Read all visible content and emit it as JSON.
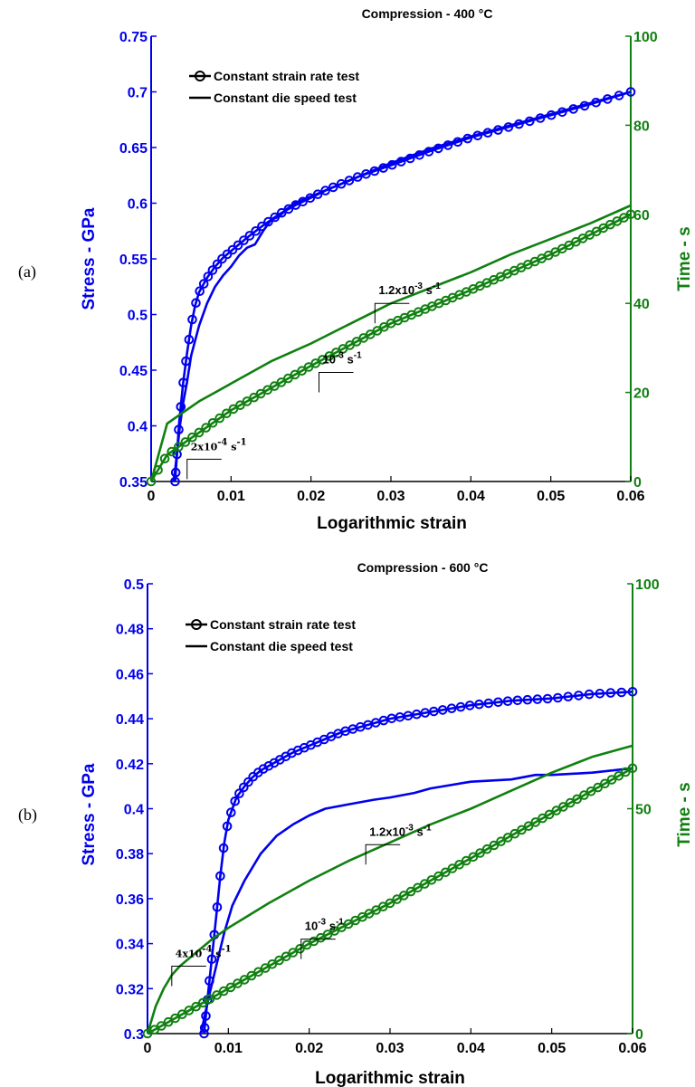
{
  "colors": {
    "stress": "#0000ee",
    "time": "#108010",
    "axis": "#000000"
  },
  "chart_data": [
    {
      "type": "line",
      "panel_label": "(a)",
      "title": "Compression - 400 °C",
      "xlabel": "Logarithmic strain",
      "ylabel_left": "Stress - GPa",
      "ylabel_right": "Time - s",
      "xlim": [
        0,
        0.06
      ],
      "ylim_left": [
        0.35,
        0.75
      ],
      "ylim_right": [
        0,
        100
      ],
      "x_ticks": [
        "0",
        "0.01",
        "0.02",
        "0.03",
        "0.04",
        "0.05",
        "0.06"
      ],
      "y_left_ticks": [
        "0.35",
        "0.4",
        "0.45",
        "0.5",
        "0.55",
        "0.6",
        "0.65",
        "0.7",
        "0.75"
      ],
      "y_right_ticks": [
        "0",
        "20",
        "40",
        "60",
        "80",
        "100"
      ],
      "legend": [
        "Constant strain rate test",
        "Constant die speed test"
      ],
      "legend_position": "top-left",
      "series": [
        {
          "name": "Constant strain rate test",
          "axis": "left",
          "x": [
            0.003,
            0.0035,
            0.004,
            0.0045,
            0.005,
            0.0055,
            0.006,
            0.007,
            0.008,
            0.009,
            0.01,
            0.012,
            0.014,
            0.016,
            0.018,
            0.02,
            0.022,
            0.024,
            0.026,
            0.028,
            0.03,
            0.035,
            0.04,
            0.045,
            0.05,
            0.055,
            0.06
          ],
          "y": [
            0.35,
            0.402,
            0.438,
            0.466,
            0.49,
            0.508,
            0.52,
            0.533,
            0.543,
            0.551,
            0.557,
            0.569,
            0.58,
            0.59,
            0.598,
            0.605,
            0.612,
            0.618,
            0.624,
            0.629,
            0.634,
            0.647,
            0.659,
            0.669,
            0.679,
            0.689,
            0.7
          ]
        },
        {
          "name": "Constant die speed test",
          "axis": "left",
          "x": [
            0.0028,
            0.003,
            0.0033,
            0.0036,
            0.004,
            0.0045,
            0.005,
            0.006,
            0.007,
            0.008,
            0.009,
            0.01,
            0.011,
            0.012,
            0.013,
            0.014,
            0.015,
            0.016,
            0.017,
            0.018,
            0.02,
            0.022,
            0.025,
            0.028,
            0.03,
            0.035,
            0.04,
            0.045,
            0.05,
            0.055,
            0.06
          ],
          "y": [
            0.35,
            0.36,
            0.38,
            0.4,
            0.42,
            0.44,
            0.463,
            0.49,
            0.51,
            0.525,
            0.535,
            0.543,
            0.553,
            0.56,
            0.563,
            0.575,
            0.585,
            0.588,
            0.595,
            0.6,
            0.606,
            0.612,
            0.621,
            0.63,
            0.636,
            0.649,
            0.66,
            0.67,
            0.68,
            0.69,
            0.7
          ]
        },
        {
          "name": "Time - constant strain rate test",
          "axis": "right",
          "x": [
            0,
            0.002,
            0.004,
            0.006,
            0.01,
            0.02,
            0.03,
            0.04,
            0.05,
            0.06
          ],
          "y": [
            0,
            6,
            8.5,
            11,
            16,
            26,
            35.5,
            43,
            51,
            60
          ]
        },
        {
          "name": "Time - constant die speed test",
          "axis": "right",
          "x": [
            0,
            0.002,
            0.004,
            0.006,
            0.008,
            0.01,
            0.015,
            0.02,
            0.025,
            0.03,
            0.035,
            0.04,
            0.045,
            0.05,
            0.055,
            0.06
          ],
          "y": [
            0,
            13,
            15.5,
            18,
            20,
            22,
            27,
            31,
            35.5,
            40,
            43.5,
            47,
            51,
            54.5,
            58,
            62
          ]
        }
      ],
      "annotations": [
        {
          "base": "1.2x10",
          "exp": "-3",
          "unit": "s",
          "unit_exp": "-1",
          "x": 0.028,
          "y": 40,
          "style": "sans"
        },
        {
          "base": "10",
          "exp": "-3",
          "unit": "s",
          "unit_exp": "-1",
          "x": 0.021,
          "y": 24.5,
          "style": "sans"
        },
        {
          "base": "2x10",
          "exp": "-4",
          "unit": "s",
          "unit_exp": "-1",
          "x": 0.0045,
          "y": 5,
          "style": "serif"
        }
      ]
    },
    {
      "type": "line",
      "panel_label": "(b)",
      "title": "Compression - 600 °C",
      "xlabel": "Logarithmic strain",
      "ylabel_left": "Stress - GPa",
      "ylabel_right": "Time - s",
      "xlim": [
        0,
        0.06
      ],
      "ylim_left": [
        0.3,
        0.5
      ],
      "ylim_right": [
        0,
        100
      ],
      "x_ticks": [
        "0",
        "0.01",
        "0.02",
        "0.03",
        "0.04",
        "0.05",
        "0.06"
      ],
      "y_left_ticks": [
        "0.3",
        "0.32",
        "0.34",
        "0.36",
        "0.38",
        "0.4",
        "0.42",
        "0.44",
        "0.46",
        "0.48",
        "0.5"
      ],
      "y_right_ticks": [
        "0",
        "50",
        "100"
      ],
      "legend": [
        "Constant strain rate test",
        "Constant die speed test"
      ],
      "legend_position": "top-left",
      "series": [
        {
          "name": "Constant strain rate test",
          "axis": "left",
          "x": [
            0.007,
            0.0075,
            0.008,
            0.0085,
            0.009,
            0.0095,
            0.01,
            0.011,
            0.012,
            0.013,
            0.014,
            0.015,
            0.016,
            0.017,
            0.018,
            0.02,
            0.022,
            0.024,
            0.026,
            0.028,
            0.03,
            0.035,
            0.04,
            0.045,
            0.05,
            0.055,
            0.06
          ],
          "y": [
            0.3,
            0.318,
            0.335,
            0.352,
            0.37,
            0.385,
            0.395,
            0.405,
            0.41,
            0.414,
            0.417,
            0.419,
            0.421,
            0.423,
            0.425,
            0.428,
            0.431,
            0.434,
            0.436,
            0.438,
            0.44,
            0.443,
            0.446,
            0.448,
            0.449,
            0.451,
            0.452
          ]
        },
        {
          "name": "Constant die speed test",
          "axis": "left",
          "x": [
            0.0066,
            0.0075,
            0.0085,
            0.0095,
            0.0105,
            0.012,
            0.014,
            0.016,
            0.018,
            0.02,
            0.022,
            0.025,
            0.028,
            0.03,
            0.033,
            0.035,
            0.04,
            0.045,
            0.048,
            0.05,
            0.055,
            0.06
          ],
          "y": [
            0.3,
            0.315,
            0.33,
            0.345,
            0.357,
            0.368,
            0.38,
            0.388,
            0.393,
            0.397,
            0.4,
            0.402,
            0.404,
            0.405,
            0.407,
            0.409,
            0.412,
            0.413,
            0.415,
            0.415,
            0.416,
            0.418
          ]
        },
        {
          "name": "Time - constant strain rate test",
          "axis": "right",
          "x": [
            0,
            0.002,
            0.004,
            0.006,
            0.008,
            0.01,
            0.015,
            0.02,
            0.025,
            0.03,
            0.035,
            0.04,
            0.045,
            0.05,
            0.055,
            0.06
          ],
          "y": [
            0,
            2,
            4,
            6,
            8,
            10,
            15,
            20,
            24.5,
            29,
            34,
            39,
            44,
            49,
            54,
            59
          ]
        },
        {
          "name": "Time - constant die speed test",
          "axis": "right",
          "x": [
            0,
            0.001,
            0.002,
            0.003,
            0.004,
            0.006,
            0.008,
            0.01,
            0.015,
            0.02,
            0.025,
            0.03,
            0.035,
            0.04,
            0.045,
            0.05,
            0.055,
            0.06
          ],
          "y": [
            0,
            6,
            10,
            13,
            15,
            18,
            21,
            23.5,
            29,
            34,
            38.5,
            42.5,
            46.5,
            50,
            54,
            58,
            61.5,
            64
          ]
        }
      ],
      "annotations": [
        {
          "base": "1.2x10",
          "exp": "-3",
          "unit": "s",
          "unit_exp": "-1",
          "x": 0.027,
          "y": 42,
          "style": "sans"
        },
        {
          "base": "10",
          "exp": "-3",
          "unit": "s",
          "unit_exp": "-1",
          "x": 0.019,
          "y": 21,
          "style": "sans"
        },
        {
          "base": "4x10",
          "exp": "-4",
          "unit": "s",
          "unit_exp": "-1",
          "x": 0.003,
          "y": 15,
          "style": "serif"
        }
      ]
    }
  ]
}
